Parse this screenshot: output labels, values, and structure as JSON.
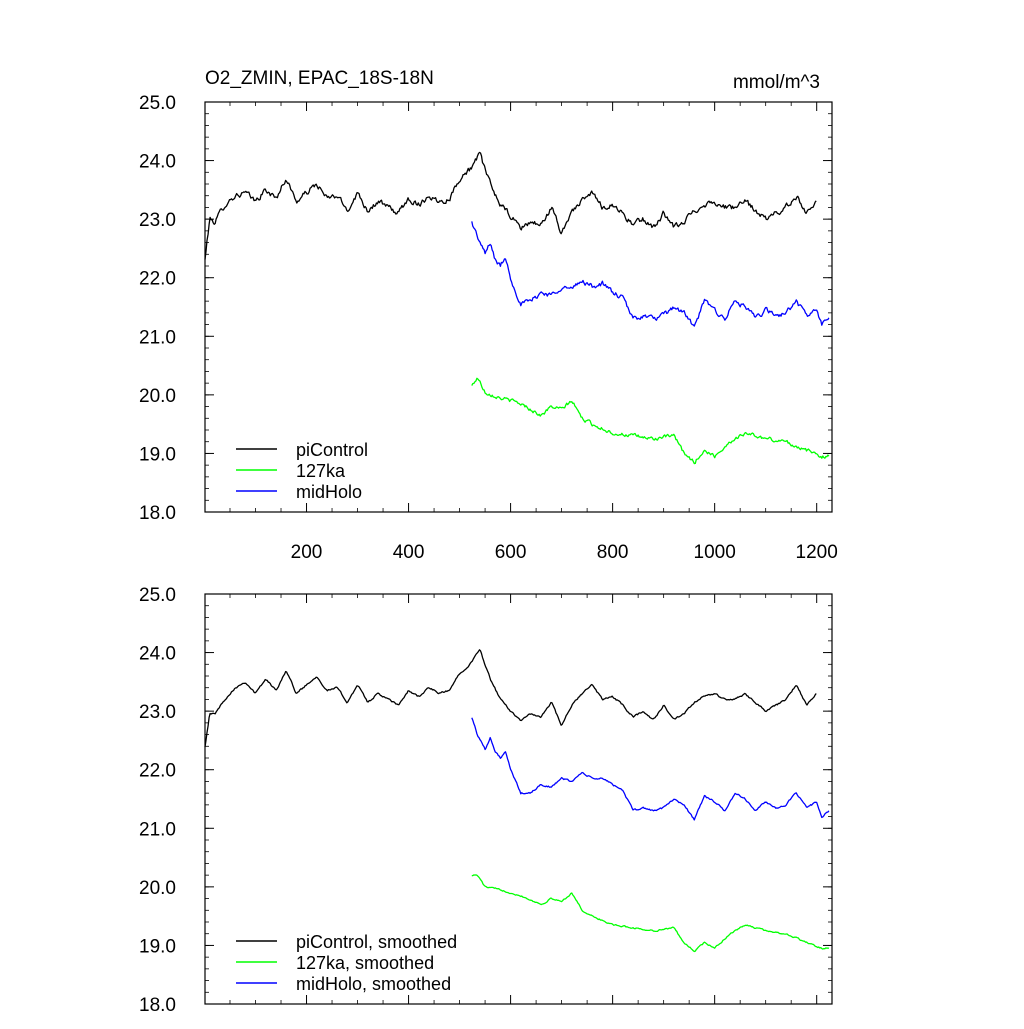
{
  "figure": {
    "title_left": "O2_ZMIN, EPAC_18S-18N",
    "title_right": "mmol/m^3"
  },
  "chart_data": [
    {
      "type": "line",
      "panel": "top",
      "title": "O2_ZMIN, EPAC_18S-18N",
      "units": "mmol/m^3",
      "xlim": [
        1,
        1230
      ],
      "ylim": [
        18.0,
        25.0
      ],
      "x_ticks": [
        200,
        400,
        600,
        800,
        1000,
        1200
      ],
      "x_tick_labels": [
        "200",
        "400",
        "600",
        "800",
        "1000",
        "1200"
      ],
      "y_ticks": [
        18.0,
        19.0,
        20.0,
        21.0,
        22.0,
        23.0,
        24.0,
        25.0
      ],
      "y_tick_labels": [
        "18.0",
        "19.0",
        "20.0",
        "21.0",
        "22.0",
        "23.0",
        "24.0",
        "25.0"
      ],
      "legend": "bottom-left",
      "series": [
        {
          "name": "piControl",
          "color": "#000000",
          "noise": 0.09,
          "x": [
            1,
            10,
            20,
            40,
            60,
            80,
            100,
            120,
            140,
            160,
            180,
            200,
            220,
            240,
            260,
            280,
            300,
            320,
            340,
            360,
            380,
            400,
            420,
            440,
            460,
            480,
            500,
            520,
            540,
            560,
            580,
            600,
            620,
            640,
            660,
            680,
            700,
            720,
            740,
            760,
            780,
            800,
            820,
            840,
            860,
            880,
            900,
            920,
            940,
            960,
            980,
            1000,
            1020,
            1040,
            1060,
            1080,
            1100,
            1120,
            1140,
            1160,
            1180,
            1200
          ],
          "y": [
            22.3,
            23.0,
            22.95,
            23.25,
            23.4,
            23.45,
            23.3,
            23.5,
            23.35,
            23.7,
            23.3,
            23.45,
            23.6,
            23.35,
            23.4,
            23.15,
            23.45,
            23.15,
            23.3,
            23.2,
            23.1,
            23.35,
            23.25,
            23.4,
            23.3,
            23.35,
            23.7,
            23.85,
            24.1,
            23.6,
            23.25,
            23.05,
            22.85,
            22.95,
            22.9,
            23.2,
            22.75,
            23.15,
            23.3,
            23.45,
            23.2,
            23.25,
            23.1,
            22.9,
            23.0,
            22.85,
            23.1,
            22.85,
            22.95,
            23.15,
            23.25,
            23.3,
            23.2,
            23.2,
            23.3,
            23.15,
            23.0,
            23.1,
            23.2,
            23.4,
            23.1,
            23.35
          ]
        },
        {
          "name": "127ka",
          "color": "#00ff00",
          "noise": 0.06,
          "x": [
            524,
            535,
            550,
            580,
            620,
            660,
            680,
            700,
            720,
            740,
            760,
            800,
            840,
            880,
            920,
            940,
            960,
            980,
            1000,
            1030,
            1060,
            1100,
            1140,
            1180,
            1210,
            1225
          ],
          "y": [
            20.15,
            20.3,
            20.05,
            19.95,
            19.85,
            19.65,
            19.8,
            19.75,
            19.9,
            19.6,
            19.5,
            19.35,
            19.3,
            19.25,
            19.3,
            19.0,
            18.85,
            19.05,
            18.95,
            19.2,
            19.35,
            19.25,
            19.2,
            19.05,
            18.95,
            18.95
          ]
        },
        {
          "name": "midHolo",
          "color": "#0000ff",
          "noise": 0.08,
          "x": [
            524,
            535,
            550,
            560,
            570,
            580,
            590,
            600,
            620,
            640,
            660,
            680,
            700,
            720,
            740,
            760,
            780,
            800,
            820,
            840,
            860,
            880,
            900,
            920,
            940,
            960,
            980,
            1000,
            1020,
            1040,
            1060,
            1080,
            1100,
            1120,
            1140,
            1160,
            1180,
            1200,
            1210,
            1225
          ],
          "y": [
            22.95,
            22.7,
            22.4,
            22.6,
            22.3,
            22.2,
            22.35,
            22.0,
            21.55,
            21.6,
            21.75,
            21.7,
            21.85,
            21.8,
            21.95,
            21.85,
            21.9,
            21.75,
            21.65,
            21.3,
            21.35,
            21.3,
            21.35,
            21.5,
            21.4,
            21.15,
            21.6,
            21.45,
            21.3,
            21.6,
            21.5,
            21.3,
            21.45,
            21.35,
            21.4,
            21.6,
            21.35,
            21.45,
            21.2,
            21.3
          ]
        }
      ]
    },
    {
      "type": "line",
      "panel": "bottom",
      "xlim": [
        1,
        1230
      ],
      "ylim": [
        18.0,
        25.0
      ],
      "x_ticks": [
        200,
        400,
        600,
        800,
        1000,
        1200
      ],
      "y_ticks": [
        18.0,
        19.0,
        20.0,
        21.0,
        22.0,
        23.0,
        24.0,
        25.0
      ],
      "y_tick_labels": [
        "18.0",
        "19.0",
        "20.0",
        "21.0",
        "22.0",
        "23.0",
        "24.0",
        "25.0"
      ],
      "legend": "bottom-left",
      "series": [
        {
          "name": "piControl, smoothed",
          "color": "#000000",
          "noise": 0.03,
          "x": [
            1,
            10,
            20,
            40,
            60,
            80,
            100,
            120,
            140,
            160,
            180,
            200,
            220,
            240,
            260,
            280,
            300,
            320,
            340,
            360,
            380,
            400,
            420,
            440,
            460,
            480,
            500,
            520,
            540,
            560,
            580,
            600,
            620,
            640,
            660,
            680,
            700,
            720,
            740,
            760,
            780,
            800,
            820,
            840,
            860,
            880,
            900,
            920,
            940,
            960,
            980,
            1000,
            1020,
            1040,
            1060,
            1080,
            1100,
            1120,
            1140,
            1160,
            1180,
            1200
          ],
          "y": [
            22.4,
            22.95,
            22.95,
            23.2,
            23.4,
            23.5,
            23.3,
            23.55,
            23.35,
            23.7,
            23.3,
            23.45,
            23.6,
            23.35,
            23.4,
            23.15,
            23.45,
            23.15,
            23.3,
            23.2,
            23.1,
            23.35,
            23.25,
            23.4,
            23.3,
            23.35,
            23.65,
            23.8,
            24.05,
            23.55,
            23.2,
            23.0,
            22.85,
            22.95,
            22.9,
            23.15,
            22.75,
            23.1,
            23.3,
            23.45,
            23.2,
            23.25,
            23.1,
            22.9,
            23.0,
            22.85,
            23.1,
            22.85,
            22.95,
            23.15,
            23.25,
            23.3,
            23.2,
            23.2,
            23.3,
            23.15,
            23.0,
            23.1,
            23.2,
            23.45,
            23.1,
            23.3
          ]
        },
        {
          "name": "127ka, smoothed",
          "color": "#00ff00",
          "noise": 0.025,
          "x": [
            524,
            535,
            550,
            580,
            620,
            660,
            680,
            700,
            720,
            740,
            760,
            800,
            840,
            880,
            920,
            940,
            960,
            980,
            1000,
            1030,
            1060,
            1100,
            1140,
            1180,
            1210,
            1225
          ],
          "y": [
            20.2,
            20.2,
            20.0,
            19.95,
            19.85,
            19.7,
            19.8,
            19.75,
            19.9,
            19.6,
            19.5,
            19.35,
            19.3,
            19.25,
            19.3,
            19.05,
            18.9,
            19.05,
            18.95,
            19.2,
            19.35,
            19.25,
            19.2,
            19.05,
            18.95,
            18.95
          ]
        },
        {
          "name": "midHolo, smoothed",
          "color": "#0000ff",
          "noise": 0.03,
          "x": [
            524,
            535,
            550,
            560,
            570,
            580,
            590,
            600,
            620,
            640,
            660,
            680,
            700,
            720,
            740,
            760,
            780,
            800,
            820,
            840,
            860,
            880,
            900,
            920,
            940,
            960,
            980,
            1000,
            1020,
            1040,
            1060,
            1080,
            1100,
            1120,
            1140,
            1160,
            1180,
            1200,
            1210,
            1225
          ],
          "y": [
            22.9,
            22.6,
            22.35,
            22.55,
            22.3,
            22.2,
            22.3,
            22.0,
            21.6,
            21.6,
            21.75,
            21.7,
            21.85,
            21.8,
            21.95,
            21.85,
            21.85,
            21.75,
            21.65,
            21.3,
            21.35,
            21.3,
            21.35,
            21.5,
            21.4,
            21.15,
            21.55,
            21.45,
            21.3,
            21.6,
            21.5,
            21.3,
            21.45,
            21.35,
            21.4,
            21.6,
            21.35,
            21.45,
            21.2,
            21.3
          ]
        }
      ]
    }
  ]
}
